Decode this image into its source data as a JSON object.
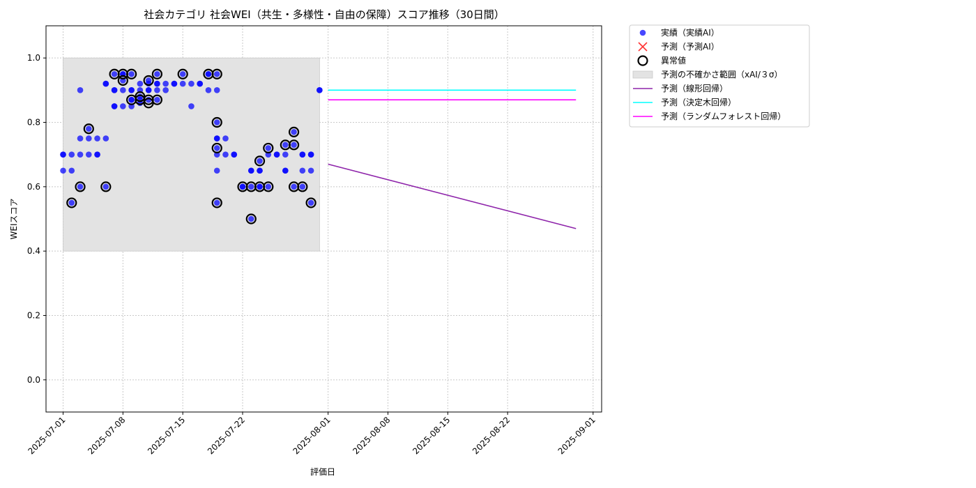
{
  "chart_data": {
    "type": "scatter",
    "title": "社会カテゴリ 社会WEI（共生・多様性・自由の保障）スコア推移（30日間）",
    "xlabel": "評価日",
    "ylabel": "WEIスコア",
    "xlim": [
      "2025-06-29",
      "2025-09-02"
    ],
    "ylim": [
      -0.1,
      1.1
    ],
    "x_ticks": [
      "2025-07-01",
      "2025-07-08",
      "2025-07-15",
      "2025-07-22",
      "2025-08-01",
      "2025-08-08",
      "2025-08-15",
      "2025-08-22",
      "2025-09-01"
    ],
    "y_ticks": [
      "0.0",
      "0.2",
      "0.4",
      "0.6",
      "0.8",
      "1.0"
    ],
    "grid": true,
    "legend_position": "outside-top-right",
    "band": {
      "name": "予測の不確かさ範囲（xAI/３σ）",
      "x": [
        "2025-07-01",
        "2025-07-31"
      ],
      "y": [
        0.4,
        1.0
      ],
      "color": "#e3e3e3"
    },
    "series": [
      {
        "name": "実績（実績AI）",
        "kind": "scatter",
        "color": "#0000ff",
        "points": [
          [
            "2025-07-01",
            0.7
          ],
          [
            "2025-07-01",
            0.65
          ],
          [
            "2025-07-01",
            0.7
          ],
          [
            "2025-07-02",
            0.65
          ],
          [
            "2025-07-02",
            0.55
          ],
          [
            "2025-07-02",
            0.7
          ],
          [
            "2025-07-03",
            0.6
          ],
          [
            "2025-07-03",
            0.9
          ],
          [
            "2025-07-03",
            0.7
          ],
          [
            "2025-07-03",
            0.75
          ],
          [
            "2025-07-04",
            0.78
          ],
          [
            "2025-07-04",
            0.7
          ],
          [
            "2025-07-04",
            0.75
          ],
          [
            "2025-07-05",
            0.75
          ],
          [
            "2025-07-05",
            0.7
          ],
          [
            "2025-07-05",
            0.7
          ],
          [
            "2025-07-06",
            0.6
          ],
          [
            "2025-07-06",
            0.75
          ],
          [
            "2025-07-06",
            0.92
          ],
          [
            "2025-07-06",
            0.92
          ],
          [
            "2025-07-07",
            0.95
          ],
          [
            "2025-07-07",
            0.85
          ],
          [
            "2025-07-07",
            0.85
          ],
          [
            "2025-07-07",
            0.9
          ],
          [
            "2025-07-07",
            0.9
          ],
          [
            "2025-07-08",
            0.85
          ],
          [
            "2025-07-08",
            0.95
          ],
          [
            "2025-07-08",
            0.93
          ],
          [
            "2025-07-08",
            0.95
          ],
          [
            "2025-07-08",
            0.9
          ],
          [
            "2025-07-09",
            0.87
          ],
          [
            "2025-07-09",
            0.95
          ],
          [
            "2025-07-09",
            0.9
          ],
          [
            "2025-07-09",
            0.87
          ],
          [
            "2025-07-09",
            0.9
          ],
          [
            "2025-07-09",
            0.85
          ],
          [
            "2025-07-10",
            0.88
          ],
          [
            "2025-07-10",
            0.9
          ],
          [
            "2025-07-10",
            0.92
          ],
          [
            "2025-07-10",
            0.87
          ],
          [
            "2025-07-10",
            0.86
          ],
          [
            "2025-07-11",
            0.9
          ],
          [
            "2025-07-11",
            0.92
          ],
          [
            "2025-07-11",
            0.87
          ],
          [
            "2025-07-11",
            0.93
          ],
          [
            "2025-07-11",
            0.9
          ],
          [
            "2025-07-12",
            0.95
          ],
          [
            "2025-07-12",
            0.92
          ],
          [
            "2025-07-12",
            0.87
          ],
          [
            "2025-07-12",
            0.92
          ],
          [
            "2025-07-12",
            0.9
          ],
          [
            "2025-07-13",
            0.92
          ],
          [
            "2025-07-13",
            0.9
          ],
          [
            "2025-07-14",
            0.92
          ],
          [
            "2025-07-14",
            0.92
          ],
          [
            "2025-07-15",
            0.95
          ],
          [
            "2025-07-15",
            0.92
          ],
          [
            "2025-07-16",
            0.92
          ],
          [
            "2025-07-16",
            0.85
          ],
          [
            "2025-07-17",
            0.92
          ],
          [
            "2025-07-17",
            0.92
          ],
          [
            "2025-07-18",
            0.95
          ],
          [
            "2025-07-18",
            0.9
          ],
          [
            "2025-07-18",
            0.95
          ],
          [
            "2025-07-19",
            0.95
          ],
          [
            "2025-07-19",
            0.9
          ],
          [
            "2025-07-19",
            0.8
          ],
          [
            "2025-07-19",
            0.72
          ],
          [
            "2025-07-19",
            0.55
          ],
          [
            "2025-07-19",
            0.7
          ],
          [
            "2025-07-19",
            0.65
          ],
          [
            "2025-07-19",
            0.75
          ],
          [
            "2025-07-19",
            0.75
          ],
          [
            "2025-07-20",
            0.75
          ],
          [
            "2025-07-20",
            0.7
          ],
          [
            "2025-07-21",
            0.7
          ],
          [
            "2025-07-21",
            0.7
          ],
          [
            "2025-07-22",
            0.6
          ],
          [
            "2025-07-22",
            0.6
          ],
          [
            "2025-07-23",
            0.6
          ],
          [
            "2025-07-23",
            0.65
          ],
          [
            "2025-07-23",
            0.65
          ],
          [
            "2025-07-23",
            0.5
          ],
          [
            "2025-07-24",
            0.6
          ],
          [
            "2025-07-24",
            0.65
          ],
          [
            "2025-07-24",
            0.65
          ],
          [
            "2025-07-24",
            0.68
          ],
          [
            "2025-07-24",
            0.6
          ],
          [
            "2025-07-25",
            0.72
          ],
          [
            "2025-07-25",
            0.6
          ],
          [
            "2025-07-25",
            0.7
          ],
          [
            "2025-07-26",
            0.7
          ],
          [
            "2025-07-26",
            0.7
          ],
          [
            "2025-07-27",
            0.73
          ],
          [
            "2025-07-27",
            0.7
          ],
          [
            "2025-07-27",
            0.65
          ],
          [
            "2025-07-27",
            0.65
          ],
          [
            "2025-07-28",
            0.6
          ],
          [
            "2025-07-28",
            0.77
          ],
          [
            "2025-07-28",
            0.73
          ],
          [
            "2025-07-29",
            0.6
          ],
          [
            "2025-07-29",
            0.7
          ],
          [
            "2025-07-29",
            0.65
          ],
          [
            "2025-07-29",
            0.7
          ],
          [
            "2025-07-30",
            0.55
          ],
          [
            "2025-07-30",
            0.65
          ],
          [
            "2025-07-30",
            0.7
          ],
          [
            "2025-07-30",
            0.7
          ],
          [
            "2025-07-31",
            0.9
          ],
          [
            "2025-07-31",
            0.9
          ]
        ]
      },
      {
        "name": "予測（予測AI）",
        "kind": "marker-x",
        "color": "#ff3333",
        "points": []
      },
      {
        "name": "異常値",
        "kind": "ring",
        "color": "#000000",
        "points": [
          [
            "2025-07-02",
            0.55
          ],
          [
            "2025-07-03",
            0.6
          ],
          [
            "2025-07-04",
            0.78
          ],
          [
            "2025-07-06",
            0.6
          ],
          [
            "2025-07-07",
            0.95
          ],
          [
            "2025-07-08",
            0.95
          ],
          [
            "2025-07-08",
            0.93
          ],
          [
            "2025-07-09",
            0.95
          ],
          [
            "2025-07-09",
            0.87
          ],
          [
            "2025-07-10",
            0.87
          ],
          [
            "2025-07-10",
            0.88
          ],
          [
            "2025-07-11",
            0.86
          ],
          [
            "2025-07-11",
            0.87
          ],
          [
            "2025-07-11",
            0.93
          ],
          [
            "2025-07-12",
            0.95
          ],
          [
            "2025-07-12",
            0.87
          ],
          [
            "2025-07-15",
            0.95
          ],
          [
            "2025-07-18",
            0.95
          ],
          [
            "2025-07-19",
            0.95
          ],
          [
            "2025-07-19",
            0.8
          ],
          [
            "2025-07-19",
            0.72
          ],
          [
            "2025-07-19",
            0.55
          ],
          [
            "2025-07-22",
            0.6
          ],
          [
            "2025-07-23",
            0.6
          ],
          [
            "2025-07-23",
            0.5
          ],
          [
            "2025-07-24",
            0.6
          ],
          [
            "2025-07-24",
            0.68
          ],
          [
            "2025-07-25",
            0.6
          ],
          [
            "2025-07-25",
            0.72
          ],
          [
            "2025-07-27",
            0.73
          ],
          [
            "2025-07-28",
            0.6
          ],
          [
            "2025-07-28",
            0.77
          ],
          [
            "2025-07-28",
            0.73
          ],
          [
            "2025-07-29",
            0.6
          ],
          [
            "2025-07-30",
            0.55
          ]
        ]
      },
      {
        "name": "予測（線形回帰）",
        "kind": "line",
        "color": "#8e24aa",
        "points": [
          [
            "2025-08-01",
            0.67
          ],
          [
            "2025-08-30",
            0.47
          ]
        ]
      },
      {
        "name": "予測（決定木回帰）",
        "kind": "line",
        "color": "#00ffff",
        "points": [
          [
            "2025-08-01",
            0.9
          ],
          [
            "2025-08-30",
            0.9
          ]
        ]
      },
      {
        "name": "予測（ランダムフォレスト回帰）",
        "kind": "line",
        "color": "#ff00ff",
        "points": [
          [
            "2025-08-01",
            0.87
          ],
          [
            "2025-08-30",
            0.87
          ]
        ]
      }
    ]
  }
}
